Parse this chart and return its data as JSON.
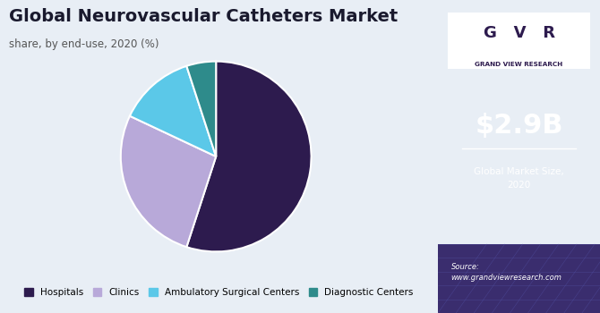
{
  "title": "Global Neurovascular Catheters Market",
  "subtitle": "share, by end-use, 2020 (%)",
  "segments": [
    "Hospitals",
    "Clinics",
    "Ambulatory Surgical Centers",
    "Diagnostic Centers"
  ],
  "values": [
    55,
    27,
    13,
    5
  ],
  "colors": [
    "#2d1b4e",
    "#b8a9d9",
    "#5bc8e8",
    "#2e8b8b"
  ],
  "startangle": 90,
  "bg_color": "#e8eef5",
  "right_panel_color": "#2d1b4e",
  "market_size": "$2.9B",
  "market_label": "Global Market Size,\n2020",
  "source_text": "Source:\nwww.grandviewresearch.com",
  "legend_colors": [
    "#2d1b4e",
    "#b8a9d9",
    "#5bc8e8",
    "#2e8b8b"
  ]
}
